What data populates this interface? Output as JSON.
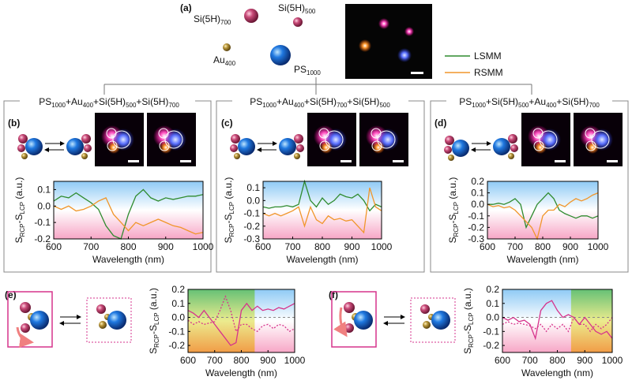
{
  "figure": {
    "panel_labels": [
      "(a)",
      "(b)",
      "(c)",
      "(d)",
      "(e)",
      "(f)"
    ],
    "particles": [
      [
        "Si(5H)",
        "700"
      ],
      [
        "Si(5H)",
        "500"
      ],
      [
        "Au",
        "400"
      ],
      [
        "PS",
        "1000"
      ]
    ],
    "panel_titles": [
      [
        "PS",
        "1000",
        "+Au",
        "400",
        "+Si(5H)",
        "500",
        "+Si(5H)",
        "700"
      ],
      [
        "PS",
        "1000",
        "+Au",
        "400",
        "+Si(5H)",
        "700",
        "+Si(5H)",
        "500"
      ],
      [
        "PS",
        "1000",
        "+Si(5H)",
        "500",
        "+Au",
        "400",
        "+Si(5H)",
        "700"
      ]
    ]
  },
  "chart_data": [
    {
      "type": "line",
      "xlabel": "Wavelength (nm)",
      "ylabel": [
        "S",
        "RCP",
        "-S",
        "LCP",
        " (a.u.)"
      ],
      "x": [
        600,
        620,
        640,
        660,
        680,
        700,
        720,
        740,
        760,
        780,
        800,
        820,
        840,
        860,
        880,
        900,
        920,
        940,
        960,
        980,
        1000
      ],
      "xlim": [
        600,
        1000
      ],
      "xticks": [
        600,
        700,
        800,
        900,
        1000
      ],
      "ylim": [
        -0.2,
        0.15
      ],
      "yticks": [
        -0.2,
        -0.1,
        {
          "value": 0,
          "label": "0.0"
        },
        0.1
      ],
      "series": [
        {
          "name": "LSMM",
          "color": "#2e8b2e",
          "values": [
            0.03,
            0.06,
            0.05,
            0.08,
            0.05,
            0.02,
            -0.02,
            -0.12,
            -0.18,
            -0.2,
            -0.05,
            0.06,
            0.1,
            0.05,
            0.03,
            0.05,
            0.04,
            0.05,
            0.06,
            0.06,
            0.07
          ]
        },
        {
          "name": "RSMM",
          "color": "#f0962a",
          "values": [
            0.0,
            -0.02,
            0.0,
            -0.03,
            -0.02,
            0.0,
            0.03,
            0.05,
            -0.05,
            -0.1,
            -0.15,
            -0.1,
            -0.12,
            -0.1,
            -0.08,
            -0.1,
            -0.12,
            -0.13,
            -0.15,
            -0.17,
            -0.16
          ]
        }
      ]
    },
    {
      "type": "line",
      "xlabel": "Wavelength (nm)",
      "ylabel": [
        "S",
        "RCP",
        "-S",
        "LCP",
        " (a.u.)"
      ],
      "x": [
        600,
        620,
        640,
        660,
        680,
        700,
        720,
        740,
        760,
        780,
        800,
        820,
        840,
        860,
        880,
        900,
        920,
        940,
        960,
        980,
        1000
      ],
      "xlim": [
        600,
        1000
      ],
      "xticks": [
        600,
        700,
        800,
        900,
        1000
      ],
      "ylim": [
        -0.3,
        0.15
      ],
      "yticks": [
        -0.3,
        -0.2,
        -0.1,
        {
          "value": 0,
          "label": "0.0"
        },
        0.1
      ],
      "series": [
        {
          "color": "#2e8b2e",
          "values": [
            -0.05,
            -0.06,
            -0.05,
            -0.05,
            -0.04,
            -0.05,
            -0.03,
            0.15,
            0.0,
            -0.05,
            0.02,
            -0.03,
            0.0,
            0.05,
            0.03,
            0.02,
            0.05,
            0.0,
            -0.08,
            -0.03,
            -0.05
          ]
        },
        {
          "color": "#f0962a",
          "values": [
            -0.1,
            -0.12,
            -0.1,
            -0.12,
            -0.1,
            -0.08,
            -0.05,
            -0.2,
            -0.05,
            -0.15,
            -0.18,
            -0.12,
            -0.15,
            -0.14,
            -0.16,
            -0.15,
            -0.2,
            -0.25,
            0.1,
            -0.05,
            -0.08
          ]
        }
      ]
    },
    {
      "type": "line",
      "xlabel": "Wavelength (nm)",
      "ylabel": [
        "S",
        "RCP",
        "-S",
        "LCP",
        " (a.u.)"
      ],
      "x": [
        600,
        620,
        640,
        660,
        680,
        700,
        720,
        740,
        760,
        780,
        800,
        820,
        840,
        860,
        880,
        900,
        920,
        940,
        960,
        980,
        1000
      ],
      "xlim": [
        600,
        1000
      ],
      "xticks": [
        600,
        700,
        800,
        900,
        1000
      ],
      "ylim": [
        -0.3,
        0.2
      ],
      "yticks": [
        -0.3,
        -0.2,
        -0.1,
        {
          "value": 0,
          "label": "0.0"
        },
        0.1,
        0.2
      ],
      "series": [
        {
          "color": "#2e8b2e",
          "values": [
            0.0,
            0.0,
            0.01,
            0.0,
            0.02,
            0.05,
            0.0,
            -0.2,
            -0.1,
            0.0,
            0.05,
            0.1,
            0.05,
            -0.05,
            -0.08,
            -0.1,
            -0.12,
            -0.1,
            -0.1,
            -0.12,
            -0.1
          ]
        },
        {
          "color": "#f0962a",
          "values": [
            0.0,
            -0.02,
            -0.01,
            -0.03,
            -0.02,
            -0.05,
            -0.1,
            -0.15,
            -0.2,
            -0.3,
            -0.1,
            -0.05,
            -0.05,
            0.0,
            -0.02,
            0.02,
            0.05,
            0.03,
            0.05,
            0.08,
            0.1
          ]
        }
      ]
    },
    {
      "type": "line",
      "xlabel": "Wavelength (nm)",
      "ylabel": [
        "S",
        "RCP",
        "-S",
        "LCP",
        " (a.u.)"
      ],
      "x": [
        600,
        620,
        640,
        660,
        680,
        700,
        720,
        740,
        760,
        780,
        800,
        820,
        840,
        860,
        880,
        900,
        920,
        940,
        960,
        980,
        1000
      ],
      "xlim": [
        600,
        1000
      ],
      "xticks": [
        600,
        700,
        800,
        900,
        1000
      ],
      "ylim": [
        -0.25,
        0.2
      ],
      "yticks": [
        -0.2,
        -0.1,
        {
          "value": 0,
          "label": "0.0"
        },
        0.1,
        0.2
      ],
      "highlight_range": [
        600,
        850
      ],
      "series": [
        {
          "color": "#d6338c",
          "dash": false,
          "values": [
            0.05,
            0.03,
            0.0,
            0.05,
            0.0,
            -0.05,
            -0.1,
            -0.15,
            -0.2,
            -0.18,
            0.05,
            0.1,
            0.05,
            0.08,
            0.05,
            0.06,
            0.05,
            0.07,
            0.06,
            0.08,
            0.1
          ]
        },
        {
          "color": "#d6338c",
          "dash": true,
          "values": [
            -0.02,
            -0.05,
            -0.03,
            -0.05,
            -0.04,
            -0.03,
            0.05,
            0.15,
            0.05,
            -0.1,
            -0.05,
            -0.05,
            -0.08,
            -0.1,
            -0.06,
            -0.05,
            -0.08,
            -0.05,
            -0.06,
            -0.1,
            -0.08
          ]
        }
      ]
    },
    {
      "type": "line",
      "xlabel": "Wavelength (nm)",
      "ylabel": [
        "S",
        "RCP",
        "-S",
        "LCP",
        " (a.u.)"
      ],
      "x": [
        600,
        620,
        640,
        660,
        680,
        700,
        720,
        740,
        760,
        780,
        800,
        820,
        840,
        860,
        880,
        900,
        920,
        940,
        960,
        980,
        1000
      ],
      "xlim": [
        600,
        1000
      ],
      "xticks": [
        600,
        700,
        800,
        900,
        1000
      ],
      "ylim": [
        -0.25,
        0.2
      ],
      "yticks": [
        -0.2,
        -0.1,
        {
          "value": 0,
          "label": "0.0"
        },
        0.1,
        0.2
      ],
      "highlight_range": [
        850,
        1000
      ],
      "series": [
        {
          "color": "#d6338c",
          "dash": false,
          "values": [
            0.0,
            -0.02,
            0.0,
            -0.03,
            -0.02,
            -0.05,
            -0.15,
            0.05,
            0.1,
            0.12,
            0.05,
            0.0,
            0.02,
            0.0,
            -0.05,
            0.0,
            -0.05,
            -0.1,
            -0.12,
            -0.1,
            -0.15
          ]
        },
        {
          "color": "#d6338c",
          "dash": true,
          "values": [
            -0.05,
            -0.03,
            -0.05,
            -0.04,
            -0.05,
            -0.06,
            -0.08,
            -0.05,
            -0.1,
            -0.05,
            -0.08,
            -0.05,
            -0.1,
            0.0,
            -0.05,
            -0.05,
            -0.1,
            -0.05,
            -0.08,
            -0.05,
            0.0
          ]
        }
      ]
    }
  ]
}
